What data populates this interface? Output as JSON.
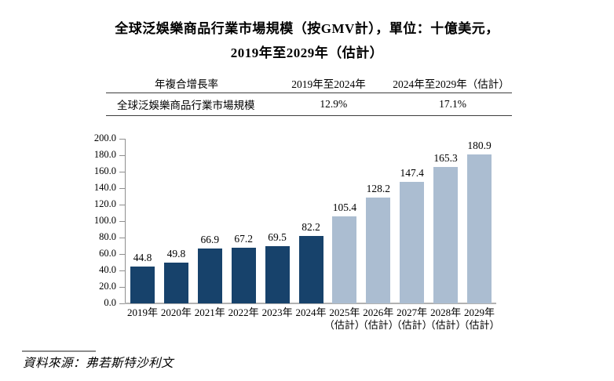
{
  "title": {
    "line1": "全球泛娛樂商品行業市場規模（按GMV計），單位：十億美元，",
    "line2": "2019年至2029年（估計）"
  },
  "table": {
    "headers": [
      "年複合增長率",
      "2019年至2024年",
      "2024年至2029年（估計）"
    ],
    "rows": [
      [
        "全球泛娛樂商品行業市場規模",
        "12.9%",
        "17.1%"
      ]
    ]
  },
  "chart_data": {
    "type": "bar",
    "title": "全球泛娛樂商品行業市場規模（按GMV計），單位：十億美元，2019年至2029年（估計）",
    "categories": [
      {
        "year": "2019年",
        "note": ""
      },
      {
        "year": "2020年",
        "note": ""
      },
      {
        "year": "2021年",
        "note": ""
      },
      {
        "year": "2022年",
        "note": ""
      },
      {
        "year": "2023年",
        "note": ""
      },
      {
        "year": "2024年",
        "note": ""
      },
      {
        "year": "2025年",
        "note": "（估計）"
      },
      {
        "year": "2026年",
        "note": "（估計）"
      },
      {
        "year": "2027年",
        "note": "（估計）"
      },
      {
        "year": "2028年",
        "note": "（估計）"
      },
      {
        "year": "2029年",
        "note": "（估計）"
      }
    ],
    "values": [
      44.8,
      49.8,
      66.9,
      67.2,
      69.5,
      82.2,
      105.4,
      128.2,
      147.4,
      165.3,
      180.9
    ],
    "estimate_from_index": 6,
    "colors": {
      "actual": "#17426B",
      "estimate": "#ABBDD1"
    },
    "ylim": [
      0,
      200
    ],
    "ytick_step": 20,
    "yticks": [
      "0.0",
      "20.0",
      "40.0",
      "60.0",
      "80.0",
      "100.0",
      "120.0",
      "140.0",
      "160.0",
      "180.0",
      "200.0"
    ],
    "grid": false,
    "legend": "none",
    "value_labels": true,
    "xlabel": "",
    "ylabel": ""
  },
  "footer": {
    "source": "資料來源：弗若斯特沙利文"
  }
}
